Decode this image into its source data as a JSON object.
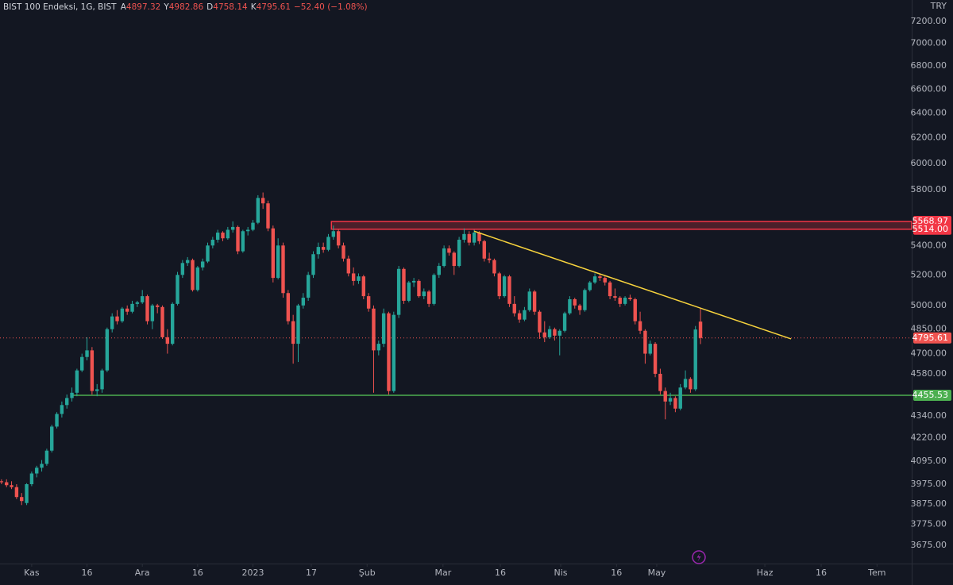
{
  "chart_data": {
    "type": "candlestick",
    "title": "BIST 100 Endeksi, 1G, BIST",
    "ohlc_labels": [
      "A",
      "Y",
      "D",
      "K"
    ],
    "change_label": "−52.40 (−1.08%)",
    "currency": "TRY",
    "log_scale": true,
    "up_color": "#26a69a",
    "down_color": "#ef5350",
    "ylim": [
      3590,
      7400
    ],
    "xlim": [
      -0.3,
      181
    ],
    "yticks": [
      {
        "value": 7200,
        "label": "7200.00"
      },
      {
        "value": 7000,
        "label": "7000.00"
      },
      {
        "value": 6800,
        "label": "6800.00"
      },
      {
        "value": 6600,
        "label": "6600.00"
      },
      {
        "value": 6400,
        "label": "6400.00"
      },
      {
        "value": 6200,
        "label": "6200.00"
      },
      {
        "value": 6000,
        "label": "6000.00"
      },
      {
        "value": 5800,
        "label": "5800.00"
      },
      {
        "value": 5400,
        "label": "5400.00"
      },
      {
        "value": 5200,
        "label": "5200.00"
      },
      {
        "value": 5000,
        "label": "5000.00"
      },
      {
        "value": 4850,
        "label": "4850.00"
      },
      {
        "value": 4700,
        "label": "4700.00"
      },
      {
        "value": 4580,
        "label": "4580.00"
      },
      {
        "value": 4340,
        "label": "4340.00"
      },
      {
        "value": 4220,
        "label": "4220.00"
      },
      {
        "value": 4095,
        "label": "4095.00"
      },
      {
        "value": 3975,
        "label": "3975.00"
      },
      {
        "value": 3875,
        "label": "3875.00"
      },
      {
        "value": 3775,
        "label": "3775.00"
      },
      {
        "value": 3675,
        "label": "3675.00"
      }
    ],
    "xticks": [
      {
        "value": 6,
        "label": "Kas"
      },
      {
        "value": 17,
        "label": "16"
      },
      {
        "value": 28,
        "label": "Ara"
      },
      {
        "value": 39,
        "label": "16"
      },
      {
        "value": 50,
        "label": "2023"
      },
      {
        "value": 61.6,
        "label": "17"
      },
      {
        "value": 72.7,
        "label": "Şub"
      },
      {
        "value": 87.8,
        "label": "Mar"
      },
      {
        "value": 99.2,
        "label": "16"
      },
      {
        "value": 111.2,
        "label": "Nis"
      },
      {
        "value": 122.3,
        "label": "16"
      },
      {
        "value": 130.3,
        "label": "May"
      },
      {
        "value": 151.8,
        "label": "Haz"
      },
      {
        "value": 163,
        "label": "16"
      },
      {
        "value": 174.1,
        "label": "Tem"
      }
    ],
    "resistance_zone": {
      "start": 65.6,
      "low": {
        "value": 5514,
        "label": "5514.00"
      },
      "high": 5568.97,
      "color": "#f23645"
    },
    "support_line": {
      "start": 14.2,
      "value": 4455.53,
      "color": "#4caf50"
    },
    "trendline": {
      "x": [
        94,
        157
      ],
      "y": [
        5500,
        4790
      ],
      "color": "#f7d33d"
    },
    "ohlc": [
      [
        3990,
        4000,
        3975,
        3985
      ],
      [
        3985,
        4000,
        3960,
        3970
      ],
      [
        3970,
        3990,
        3950,
        3960
      ],
      [
        3960,
        3975,
        3900,
        3910
      ],
      [
        3910,
        3930,
        3870,
        3890
      ],
      [
        3880,
        3980,
        3870,
        3975
      ],
      [
        3975,
        4040,
        3965,
        4030
      ],
      [
        4030,
        4070,
        4010,
        4060
      ],
      [
        4060,
        4100,
        4040,
        4080
      ],
      [
        4080,
        4160,
        4070,
        4150
      ],
      [
        4150,
        4290,
        4140,
        4280
      ],
      [
        4280,
        4360,
        4270,
        4350
      ],
      [
        4350,
        4420,
        4330,
        4400
      ],
      [
        4400,
        4460,
        4380,
        4440
      ],
      [
        4440,
        4500,
        4420,
        4470
      ],
      [
        4470,
        4610,
        4450,
        4600
      ],
      [
        4600,
        4700,
        4590,
        4680
      ],
      [
        4680,
        4800,
        4660,
        4720
      ],
      [
        4720,
        4740,
        4460,
        4480
      ],
      [
        4480,
        4520,
        4450,
        4490
      ],
      [
        4490,
        4610,
        4470,
        4600
      ],
      [
        4600,
        4860,
        4590,
        4850
      ],
      [
        4850,
        4950,
        4830,
        4930
      ],
      [
        4930,
        4970,
        4880,
        4900
      ],
      [
        4900,
        4990,
        4890,
        4980
      ],
      [
        4980,
        5000,
        4940,
        4960
      ],
      [
        4960,
        5030,
        4950,
        5010
      ],
      [
        5010,
        5030,
        4990,
        5020
      ],
      [
        5020,
        5100,
        5010,
        5060
      ],
      [
        5060,
        5070,
        4880,
        4900
      ],
      [
        4900,
        5010,
        4850,
        5000
      ],
      [
        5000,
        5010,
        4950,
        4990
      ],
      [
        4990,
        5000,
        4790,
        4800
      ],
      [
        4800,
        4850,
        4700,
        4760
      ],
      [
        4760,
        5020,
        4750,
        5010
      ],
      [
        5010,
        5220,
        5000,
        5200
      ],
      [
        5200,
        5300,
        5180,
        5280
      ],
      [
        5280,
        5320,
        5260,
        5300
      ],
      [
        5300,
        5310,
        5090,
        5100
      ],
      [
        5100,
        5260,
        5090,
        5250
      ],
      [
        5250,
        5310,
        5230,
        5290
      ],
      [
        5290,
        5420,
        5280,
        5400
      ],
      [
        5400,
        5460,
        5380,
        5440
      ],
      [
        5440,
        5510,
        5420,
        5490
      ],
      [
        5490,
        5500,
        5430,
        5450
      ],
      [
        5450,
        5530,
        5440,
        5510
      ],
      [
        5510,
        5570,
        5490,
        5530
      ],
      [
        5530,
        5540,
        5340,
        5360
      ],
      [
        5360,
        5510,
        5350,
        5500
      ],
      [
        5500,
        5530,
        5470,
        5510
      ],
      [
        5510,
        5580,
        5500,
        5560
      ],
      [
        5560,
        5760,
        5550,
        5740
      ],
      [
        5740,
        5780,
        5660,
        5700
      ],
      [
        5700,
        5720,
        5500,
        5520
      ],
      [
        5520,
        5540,
        5150,
        5180
      ],
      [
        5180,
        5450,
        5170,
        5400
      ],
      [
        5400,
        5420,
        5050,
        5080
      ],
      [
        5080,
        5100,
        4880,
        4900
      ],
      [
        4900,
        4940,
        4640,
        4760
      ],
      [
        4760,
        5010,
        4650,
        5000
      ],
      [
        5000,
        5080,
        4980,
        5050
      ],
      [
        5050,
        5220,
        5030,
        5200
      ],
      [
        5200,
        5360,
        5180,
        5340
      ],
      [
        5340,
        5420,
        5310,
        5390
      ],
      [
        5390,
        5420,
        5350,
        5370
      ],
      [
        5370,
        5480,
        5360,
        5460
      ],
      [
        5460,
        5540,
        5440,
        5500
      ],
      [
        5500,
        5510,
        5380,
        5400
      ],
      [
        5400,
        5420,
        5290,
        5310
      ],
      [
        5310,
        5330,
        5190,
        5210
      ],
      [
        5210,
        5250,
        5130,
        5160
      ],
      [
        5160,
        5210,
        5140,
        5190
      ],
      [
        5190,
        5200,
        5040,
        5060
      ],
      [
        5060,
        5080,
        4960,
        4980
      ],
      [
        4980,
        5000,
        4470,
        4720
      ],
      [
        4720,
        4780,
        4690,
        4760
      ],
      [
        4760,
        4980,
        4740,
        4950
      ],
      [
        4950,
        4960,
        4460,
        4480
      ],
      [
        4480,
        4960,
        4470,
        4940
      ],
      [
        4940,
        5260,
        4920,
        5240
      ],
      [
        5240,
        5250,
        5010,
        5030
      ],
      [
        5030,
        5160,
        5020,
        5150
      ],
      [
        5150,
        5180,
        5120,
        5160
      ],
      [
        5160,
        5170,
        5050,
        5060
      ],
      [
        5060,
        5110,
        5040,
        5090
      ],
      [
        5090,
        5100,
        4990,
        5010
      ],
      [
        5010,
        5210,
        5000,
        5200
      ],
      [
        5200,
        5280,
        5180,
        5260
      ],
      [
        5260,
        5400,
        5250,
        5380
      ],
      [
        5380,
        5400,
        5330,
        5350
      ],
      [
        5350,
        5360,
        5200,
        5260
      ],
      [
        5260,
        5460,
        5250,
        5440
      ],
      [
        5440,
        5520,
        5420,
        5480
      ],
      [
        5480,
        5500,
        5400,
        5420
      ],
      [
        5420,
        5510,
        5400,
        5490
      ],
      [
        5490,
        5500,
        5410,
        5430
      ],
      [
        5430,
        5440,
        5290,
        5310
      ],
      [
        5310,
        5350,
        5280,
        5300
      ],
      [
        5300,
        5310,
        5190,
        5210
      ],
      [
        5210,
        5220,
        5040,
        5060
      ],
      [
        5060,
        5200,
        5050,
        5190
      ],
      [
        5190,
        5200,
        4990,
        5010
      ],
      [
        5010,
        5060,
        4930,
        4950
      ],
      [
        4950,
        4970,
        4890,
        4910
      ],
      [
        4910,
        4990,
        4900,
        4970
      ],
      [
        4970,
        5110,
        4960,
        5090
      ],
      [
        5090,
        5100,
        4940,
        4960
      ],
      [
        4960,
        4970,
        4790,
        4830
      ],
      [
        4830,
        4900,
        4770,
        4800
      ],
      [
        4800,
        4870,
        4790,
        4850
      ],
      [
        4850,
        4860,
        4780,
        4810
      ],
      [
        4810,
        4850,
        4690,
        4840
      ],
      [
        4840,
        4960,
        4830,
        4950
      ],
      [
        4950,
        5060,
        4940,
        5040
      ],
      [
        5040,
        5050,
        4980,
        5000
      ],
      [
        5000,
        5010,
        4940,
        4970
      ],
      [
        4970,
        5110,
        4960,
        5100
      ],
      [
        5100,
        5160,
        5090,
        5150
      ],
      [
        5150,
        5210,
        5140,
        5190
      ],
      [
        5190,
        5210,
        5160,
        5180
      ],
      [
        5180,
        5190,
        5130,
        5150
      ],
      [
        5150,
        5160,
        5040,
        5060
      ],
      [
        5060,
        5110,
        5030,
        5050
      ],
      [
        5050,
        5060,
        4990,
        5010
      ],
      [
        5010,
        5060,
        5000,
        5050
      ],
      [
        5050,
        5070,
        5030,
        5040
      ],
      [
        5040,
        5050,
        4880,
        4900
      ],
      [
        4900,
        4960,
        4820,
        4840
      ],
      [
        4840,
        4850,
        4640,
        4700
      ],
      [
        4700,
        4780,
        4690,
        4760
      ],
      [
        4760,
        4770,
        4560,
        4580
      ],
      [
        4580,
        4610,
        4460,
        4480
      ],
      [
        4480,
        4500,
        4320,
        4420
      ],
      [
        4420,
        4470,
        4400,
        4440
      ],
      [
        4440,
        4450,
        4360,
        4380
      ],
      [
        4380,
        4520,
        4370,
        4500
      ],
      [
        4500,
        4600,
        4490,
        4550
      ],
      [
        4550,
        4560,
        4470,
        4490
      ],
      [
        4490,
        4870,
        4480,
        4848.01
      ],
      [
        4897.32,
        4982.86,
        4758.14,
        4795.61
      ]
    ]
  }
}
